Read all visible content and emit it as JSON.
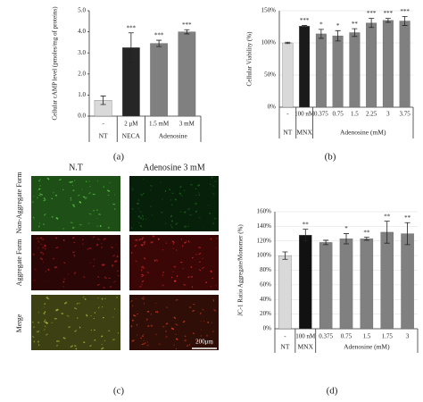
{
  "chart_data": [
    {
      "type": "bar",
      "panel": "(a)",
      "y_label": "Cellular cAMP level (pmoles/mg of proteins)",
      "categories": [
        "-",
        "2 μM",
        "1.5 mM",
        "3 mM"
      ],
      "groups": [
        "NT",
        "NECA",
        "Adenosine"
      ],
      "values": [
        0.75,
        3.25,
        3.45,
        4.0
      ],
      "errors": [
        0.2,
        0.7,
        0.15,
        0.1
      ],
      "significance": [
        null,
        "***",
        "***",
        "***"
      ],
      "colors": [
        "#d9d9d9",
        "#262626",
        "#808080",
        "#808080"
      ],
      "ylim": [
        0,
        5
      ],
      "yticks": [
        {
          "value": 0,
          "label": "0.0"
        },
        {
          "value": 1,
          "label": "1.0"
        },
        {
          "value": 2,
          "label": "2.0"
        },
        {
          "value": 3,
          "label": "3.0"
        },
        {
          "value": 4,
          "label": "4.0"
        },
        {
          "value": 5,
          "label": "5.0"
        }
      ],
      "grid": false
    },
    {
      "type": "bar",
      "panel": "(b)",
      "y_label": "Cellular Viability (%)",
      "categories": [
        "-",
        "100 nM",
        "0.375",
        "0.75",
        "1.5",
        "2.25",
        "3",
        "3.75"
      ],
      "groups": [
        "NT",
        "MNX",
        "Adenosine (mM)"
      ],
      "values": [
        100,
        126,
        114,
        111,
        116,
        131,
        135,
        134
      ],
      "errors": [
        1,
        1,
        7,
        8,
        6,
        7,
        3,
        7
      ],
      "significance": [
        null,
        "***",
        "*",
        "*",
        "**",
        "***",
        "***",
        "***"
      ],
      "colors": [
        "#d9d9d9",
        "#1a1a1a",
        "#808080",
        "#808080",
        "#808080",
        "#808080",
        "#808080",
        "#808080"
      ],
      "ylim": [
        0,
        150
      ],
      "yticks": [
        {
          "value": 0,
          "label": "0%"
        },
        {
          "value": 50,
          "label": "50%"
        },
        {
          "value": 100,
          "label": "100%"
        },
        {
          "value": 150,
          "label": "150%"
        }
      ],
      "grid": true
    },
    {
      "type": "bar",
      "panel": "(d)",
      "y_label": "JC-1 Ratio Aggregate/Monomer (%)",
      "categories": [
        "-",
        "100 nM",
        "0.375",
        "0.75",
        "1.5",
        "1.75",
        "3"
      ],
      "groups": [
        "NT",
        "MNX",
        "Adenosine (mM)"
      ],
      "values": [
        100,
        128,
        118,
        123,
        123,
        132,
        130
      ],
      "errors": [
        5,
        8,
        3,
        7,
        2,
        15,
        15
      ],
      "significance": [
        null,
        "**",
        null,
        "*",
        "**",
        "**",
        "**"
      ],
      "colors": [
        "#d9d9d9",
        "#111111",
        "#808080",
        "#808080",
        "#808080",
        "#808080",
        "#808080"
      ],
      "ylim": [
        0,
        160
      ],
      "yticks": [
        {
          "value": 0,
          "label": "0%"
        },
        {
          "value": 20,
          "label": "20%"
        },
        {
          "value": 40,
          "label": "40%"
        },
        {
          "value": 60,
          "label": "60%"
        },
        {
          "value": 80,
          "label": "80%"
        },
        {
          "value": 100,
          "label": "100%"
        },
        {
          "value": 120,
          "label": "120%"
        },
        {
          "value": 140,
          "label": "140%"
        },
        {
          "value": 160,
          "label": "160%"
        }
      ],
      "grid": true
    }
  ],
  "micrographs": {
    "panel": "(c)",
    "columns": [
      "N.T",
      "Adenosine 3 mM"
    ],
    "rows": [
      "Non-Aggregate Form",
      "Aggregate Form",
      "Merge"
    ],
    "scale_bar": "200μm"
  }
}
